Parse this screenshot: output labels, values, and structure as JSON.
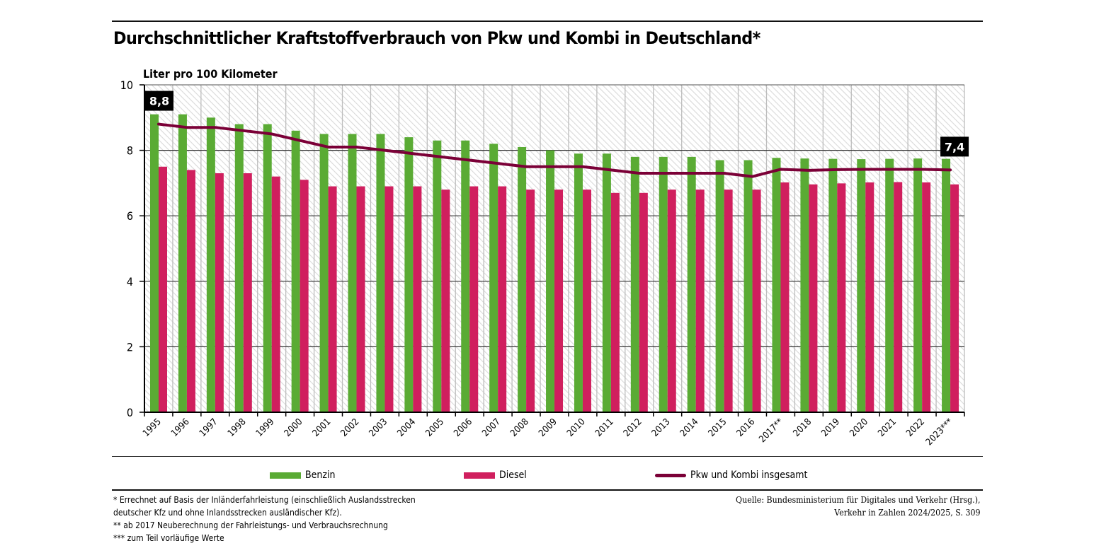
{
  "title": "Durchschnittlicher Kraftstoffverbrauch von Pkw und Kombi in Deutschland*",
  "colors": {
    "benzin": "#5aab34",
    "diesel": "#d01f5e",
    "total": "#7b0037",
    "grid": "#bdbdbd",
    "label_bg": "#000000"
  },
  "chart_data": {
    "type": "bar",
    "title": "Durchschnittlicher Kraftstoffverbrauch von Pkw und Kombi in Deutschland*",
    "ylabel": "Liter pro 100 Kilometer",
    "xlabel": "",
    "ylim": [
      0,
      10
    ],
    "yticks": [
      0,
      2,
      4,
      6,
      8,
      10
    ],
    "grid": true,
    "background": "hatched",
    "legend_position": "bottom",
    "categories": [
      "1995",
      "1996",
      "1997",
      "1998",
      "1999",
      "2000",
      "2001",
      "2002",
      "2003",
      "2004",
      "2005",
      "2006",
      "2007",
      "2008",
      "2009",
      "2010",
      "2011",
      "2012",
      "2013",
      "2014",
      "2015",
      "2016",
      "2017**",
      "2018",
      "2019",
      "2020",
      "2021",
      "2022",
      "2023***"
    ],
    "series": [
      {
        "name": "Benzin",
        "type": "bar",
        "values": [
          9.1,
          9.1,
          9.0,
          8.8,
          8.8,
          8.6,
          8.5,
          8.5,
          8.5,
          8.4,
          8.3,
          8.3,
          8.2,
          8.1,
          8.0,
          7.9,
          7.9,
          7.8,
          7.8,
          7.8,
          7.7,
          7.7,
          7.77,
          7.75,
          7.74,
          7.73,
          7.74,
          7.75,
          7.74
        ]
      },
      {
        "name": "Diesel",
        "type": "bar",
        "values": [
          7.5,
          7.4,
          7.3,
          7.3,
          7.2,
          7.1,
          6.9,
          6.9,
          6.9,
          6.9,
          6.8,
          6.9,
          6.9,
          6.8,
          6.8,
          6.8,
          6.7,
          6.7,
          6.8,
          6.8,
          6.8,
          6.8,
          7.02,
          6.96,
          6.99,
          7.02,
          7.03,
          7.02,
          6.96
        ]
      },
      {
        "name": "Pkw und Kombi insgesamt",
        "type": "line",
        "values": [
          8.8,
          8.7,
          8.7,
          8.6,
          8.5,
          8.3,
          8.1,
          8.1,
          8.0,
          7.9,
          7.8,
          7.7,
          7.6,
          7.5,
          7.5,
          7.5,
          7.4,
          7.3,
          7.3,
          7.3,
          7.3,
          7.2,
          7.42,
          7.39,
          7.41,
          7.42,
          7.42,
          7.42,
          7.4
        ]
      }
    ],
    "annotations": [
      {
        "category": "1995",
        "series": "Pkw und Kombi insgesamt",
        "text": "8,8"
      },
      {
        "category": "2023***",
        "series": "Pkw und Kombi insgesamt",
        "text": "7,4"
      }
    ]
  },
  "legend": {
    "benzin": "Benzin",
    "diesel": "Diesel",
    "total": "Pkw und Kombi insgesamt"
  },
  "footnotes": [
    "* Errechnet auf Basis der Inländerfahrleistung (einschließlich Auslandsstrecken",
    "deutscher Kfz und ohne Inlandsstrecken ausländischer Kfz).",
    "** ab 2017 Neuberechnung der Fahrleistungs- und Verbrauchsrechnung",
    "*** zum Teil vorläufige Werte"
  ],
  "source": [
    "Quelle: Bundesministerium für Digitales und Verkehr (Hrsg.),",
    "Verkehr in Zahlen 2024/2025, S. 309"
  ]
}
